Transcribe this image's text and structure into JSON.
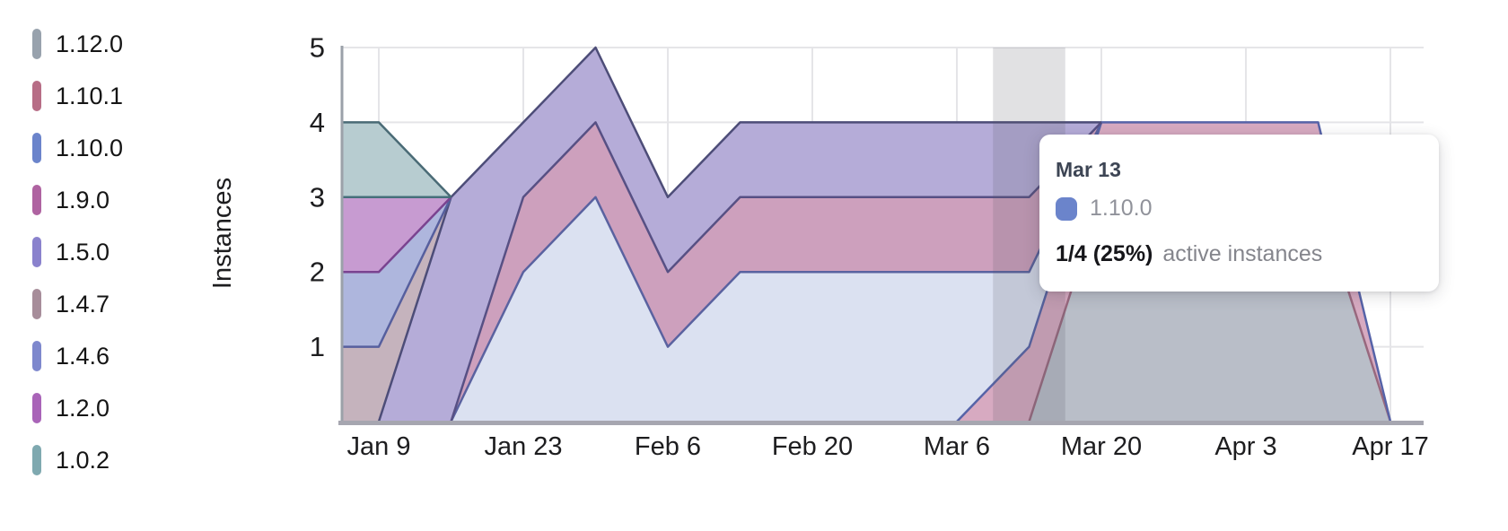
{
  "chart_data": {
    "type": "area",
    "stacked": true,
    "title": "",
    "xlabel": "",
    "ylabel": "Instances",
    "ylim": [
      0,
      5
    ],
    "y_ticks": [
      "1",
      "2",
      "3",
      "4",
      "5"
    ],
    "x_tick_labels": [
      "Jan 9",
      "Jan 23",
      "Feb 6",
      "Feb 20",
      "Mar 6",
      "Mar 20",
      "Apr 3",
      "Apr 17"
    ],
    "x_tick_days": [
      0,
      14,
      28,
      42,
      56,
      70,
      84,
      98
    ],
    "categories": [
      "Jan 2",
      "Jan 9",
      "Jan 16",
      "Jan 23",
      "Jan 30",
      "Feb 6",
      "Feb 13",
      "Feb 20",
      "Feb 27",
      "Mar 6",
      "Mar 13",
      "Mar 20",
      "Mar 27",
      "Apr 3",
      "Apr 10",
      "Apr 17"
    ],
    "category_days": [
      -7,
      0,
      7,
      14,
      21,
      28,
      35,
      42,
      49,
      56,
      63,
      70,
      77,
      84,
      91,
      98
    ],
    "grid": true,
    "legend_position": "left",
    "series": [
      {
        "name": "1.12.0",
        "swatch": "#98a2ad",
        "fill": "#b9bec8",
        "stroke": "#98687e",
        "values": [
          0,
          0,
          0,
          0,
          0,
          0,
          0,
          0,
          0,
          0,
          0,
          3,
          3,
          3,
          3,
          0
        ]
      },
      {
        "name": "1.10.1",
        "swatch": "#b76d86",
        "fill": "#d7aac1",
        "stroke": "#5663a8",
        "values": [
          0,
          0,
          0,
          0,
          0,
          0,
          0,
          0,
          0,
          0,
          1,
          1,
          1,
          1,
          1,
          0
        ]
      },
      {
        "name": "1.10.0",
        "swatch": "#6b84cb",
        "fill": "#dbe1f1",
        "stroke": "#5a62a0",
        "values": [
          0,
          0,
          0,
          2,
          3,
          1,
          2,
          2,
          2,
          2,
          1,
          0,
          0,
          0,
          0,
          0
        ]
      },
      {
        "name": "1.9.0",
        "swatch": "#af63a1",
        "fill": "#cda0bd",
        "stroke": "#575084",
        "values": [
          0,
          0,
          0,
          1,
          1,
          1,
          1,
          1,
          1,
          1,
          1,
          0,
          0,
          0,
          0,
          0
        ]
      },
      {
        "name": "1.5.0",
        "swatch": "#8a82cd",
        "fill": "#b5acd8",
        "stroke": "#4d4d78",
        "values": [
          0,
          0,
          3,
          1,
          1,
          1,
          1,
          1,
          1,
          1,
          1,
          0,
          0,
          0,
          0,
          0
        ]
      },
      {
        "name": "1.4.7",
        "swatch": "#a78d9a",
        "fill": "#c5b3bd",
        "stroke": "#565f9e",
        "values": [
          1,
          1,
          0,
          0,
          0,
          0,
          0,
          0,
          0,
          0,
          0,
          0,
          0,
          0,
          0,
          0
        ]
      },
      {
        "name": "1.4.6",
        "swatch": "#7e88cd",
        "fill": "#aeb6dd",
        "stroke": "#7a4390",
        "values": [
          1,
          1,
          0,
          0,
          0,
          0,
          0,
          0,
          0,
          0,
          0,
          0,
          0,
          0,
          0,
          0
        ]
      },
      {
        "name": "1.2.0",
        "swatch": "#a964b8",
        "fill": "#c79bd1",
        "stroke": "#46707b",
        "values": [
          1,
          1,
          0,
          0,
          0,
          0,
          0,
          0,
          0,
          0,
          0,
          0,
          0,
          0,
          0,
          0
        ]
      },
      {
        "name": "1.0.2",
        "swatch": "#7fa9b0",
        "fill": "#b7ccd0",
        "stroke": "#4a6b76",
        "values": [
          1,
          1,
          0,
          0,
          0,
          0,
          0,
          0,
          0,
          0,
          0,
          0,
          0,
          0,
          0,
          0
        ]
      }
    ],
    "highlight_band": {
      "center_date": "Mar 13",
      "center_day": 63,
      "half_width_days": 3.5,
      "color": "rgba(90,90,100,0.18)"
    },
    "colors": {
      "gridline": "#e5e5e8",
      "x_axis_line": "#a6a6b0",
      "y_axis_line": "#9ba1a9",
      "tick_text": "#1d1d1f"
    }
  },
  "tooltip": {
    "date": "Mar 13",
    "series_name": "1.10.0",
    "swatch_color": "#6b84cb",
    "value_text": "1/4 (25%)",
    "caption": "active instances"
  }
}
